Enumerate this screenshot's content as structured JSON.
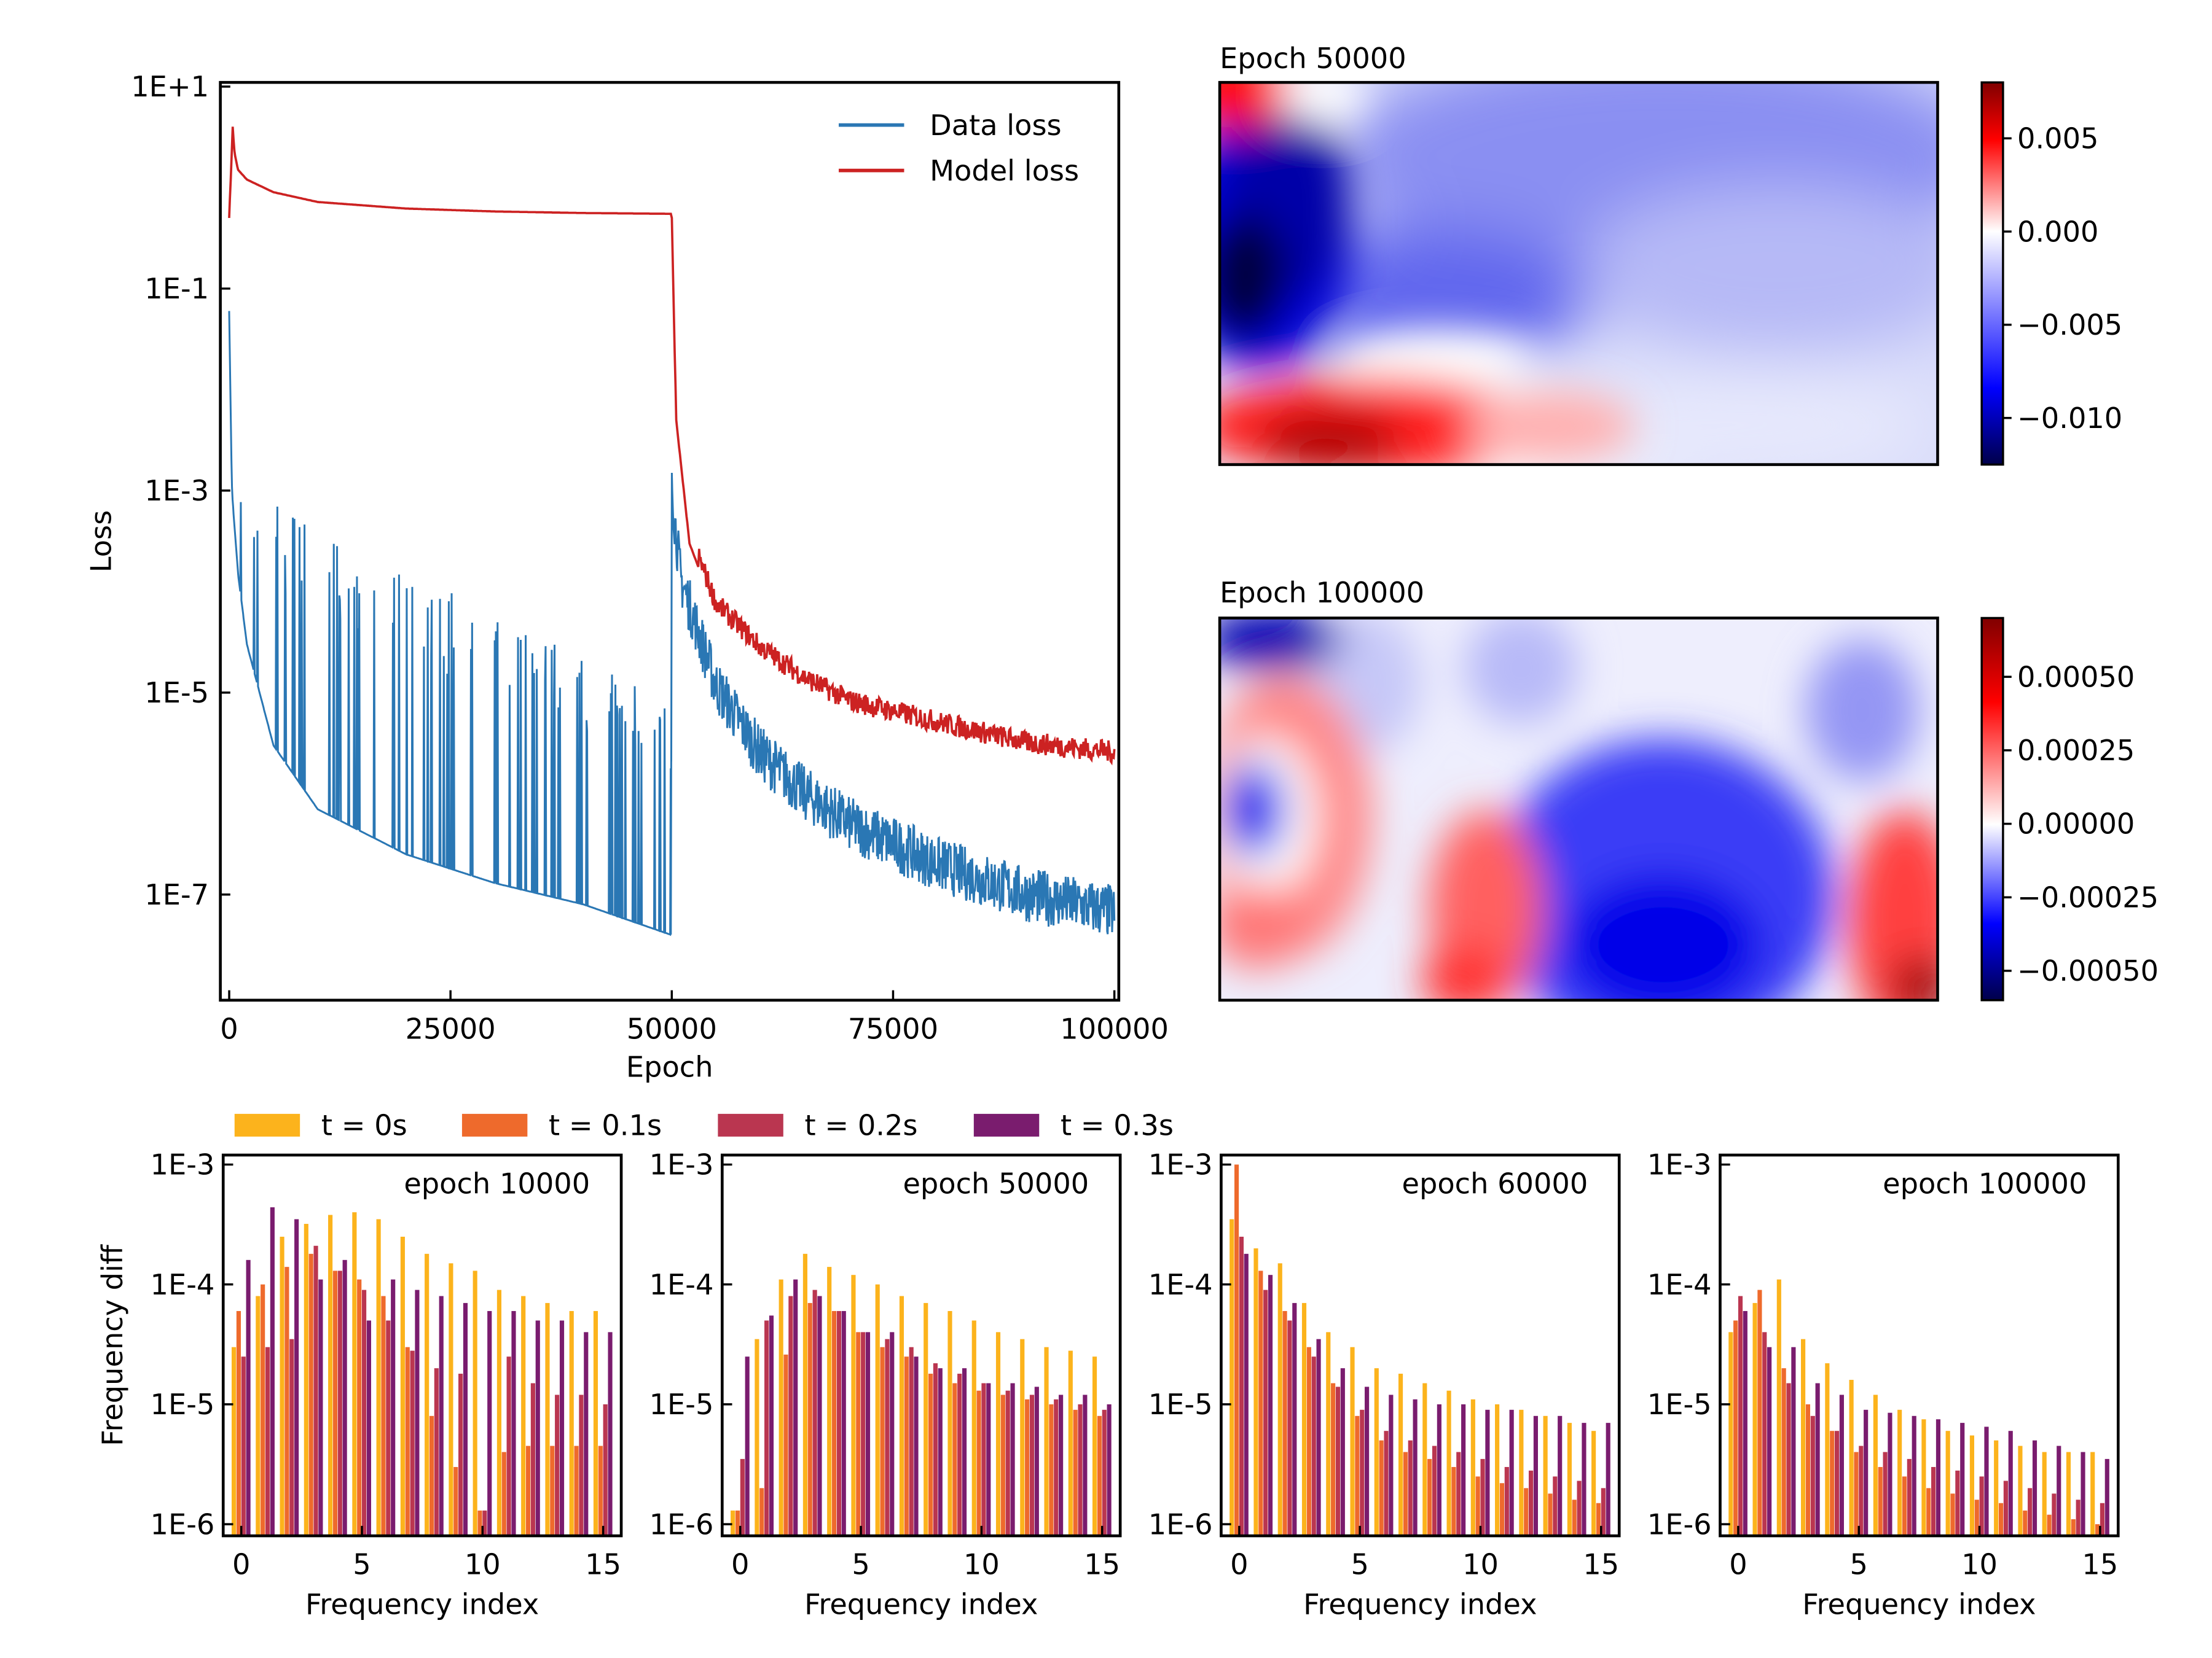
{
  "colors": {
    "data_loss": "#2a77b4",
    "model_loss": "#cc2222",
    "t0": "#fcb31c",
    "t01": "#ee6a2c",
    "t02": "#ba3650",
    "t03": "#7a1c6e"
  },
  "chart_data": [
    {
      "type": "line",
      "xlabel": "Epoch",
      "ylabel": "Loss",
      "yscale": "log",
      "xlim": [
        -1000,
        100500
      ],
      "ylim": [
        9e-09,
        11
      ],
      "xticks": [
        0,
        25000,
        50000,
        75000,
        100000
      ],
      "xtick_labels": [
        "0",
        "25000",
        "50000",
        "75000",
        "100000"
      ],
      "yticks": [
        1e-07,
        1e-05,
        0.001,
        0.1,
        10
      ],
      "ytick_labels": [
        "1E-7",
        "1E-5",
        "1E-3",
        "1E-1",
        "1E+1"
      ],
      "legend_position": "top-right",
      "series": [
        {
          "name": "Data loss",
          "x": [
            0,
            300,
            1000,
            2000,
            5000,
            10000,
            20000,
            30000,
            40000,
            49900,
            50000,
            50200,
            51000,
            55000,
            60000,
            65000,
            70000,
            80000,
            90000,
            100000
          ],
          "y": [
            0.06,
            0.001,
            0.00015,
            3e-05,
            3e-06,
            7e-07,
            2.5e-07,
            1.3e-07,
            8e-08,
            4e-08,
            0.0015,
            0.0004,
            8e-05,
            7e-06,
            1.5e-06,
            6e-07,
            3e-07,
            1.2e-07,
            6e-08,
            4e-08
          ],
          "spike_peaks_y": [
            0.0012,
            0.0009,
            0.0004,
            0.00015,
            7e-05,
            3e-05,
            1.5e-05,
            8e-06
          ]
        },
        {
          "name": "Model loss",
          "x": [
            0,
            400,
            600,
            1000,
            2000,
            5000,
            10000,
            20000,
            30000,
            40000,
            49900,
            50000,
            50500,
            52000,
            55000,
            60000,
            65000,
            70000,
            80000,
            90000,
            100000
          ],
          "y": [
            0.5,
            4,
            2.2,
            1.5,
            1.2,
            0.9,
            0.72,
            0.62,
            0.58,
            0.56,
            0.55,
            0.5,
            0.005,
            0.0003,
            6e-05,
            2.2e-05,
            1.1e-05,
            6.5e-06,
            4e-06,
            2.5e-06,
            2e-06
          ]
        }
      ]
    },
    {
      "type": "heatmap",
      "title": "Epoch 50000",
      "colormap": "seismic",
      "colorbar_range": [
        -0.0125,
        0.008
      ],
      "colorbar_ticks": [
        0.005,
        0.0,
        -0.005,
        -0.01
      ],
      "colorbar_tick_labels": [
        "0.005",
        "0.000",
        "−0.005",
        "−0.010"
      ]
    },
    {
      "type": "heatmap",
      "title": "Epoch 100000",
      "colormap": "seismic",
      "colorbar_range": [
        -0.0006,
        0.0007
      ],
      "colorbar_ticks": [
        0.0005,
        0.00025,
        0.0,
        -0.00025,
        -0.0005
      ],
      "colorbar_tick_labels": [
        "0.00050",
        "0.00025",
        "0.00000",
        "−0.00025",
        "−0.00050"
      ]
    },
    {
      "type": "bar",
      "title": "epoch 10000",
      "xlabel": "Frequency index",
      "ylabel": "Frequency diff",
      "yscale": "log",
      "ylim": [
        8e-07,
        0.0012
      ],
      "categories": [
        0,
        1,
        2,
        3,
        4,
        5,
        6,
        7,
        8,
        9,
        10,
        11,
        12,
        13,
        14,
        15
      ],
      "series": [
        {
          "name": "t = 0s",
          "values": [
            3e-05,
            8e-05,
            0.00025,
            0.00032,
            0.00038,
            0.0004,
            0.00035,
            0.00025,
            0.00018,
            0.00015,
            0.00013,
            9e-05,
            8e-05,
            7e-05,
            6e-05,
            6e-05
          ]
        },
        {
          "name": "t = 0.1s",
          "values": [
            6e-05,
            0.0001,
            0.00014,
            0.00018,
            0.00013,
            0.00011,
            8e-05,
            3e-05,
            8e-06,
            3e-06,
            1.3e-06,
            4e-06,
            4.5e-06,
            4.5e-06,
            4.5e-06,
            4.5e-06
          ]
        },
        {
          "name": "t = 0.2s",
          "values": [
            2.5e-05,
            3e-05,
            3.5e-05,
            0.00021,
            0.00013,
            9e-05,
            5e-05,
            2.8e-05,
            2e-05,
            1.8e-05,
            1.3e-06,
            2.5e-05,
            1.5e-05,
            1.2e-05,
            1.2e-05,
            1e-05
          ]
        },
        {
          "name": "t = 0.3s",
          "values": [
            0.00016,
            0.00044,
            0.00035,
            0.00011,
            0.00016,
            5e-05,
            0.00011,
            9e-05,
            8e-05,
            7e-05,
            6e-05,
            6e-05,
            5e-05,
            5e-05,
            4e-05,
            4e-05
          ]
        }
      ]
    },
    {
      "type": "bar",
      "title": "epoch 50000",
      "xlabel": "Frequency index",
      "yscale": "log",
      "ylim": [
        8e-07,
        0.0012
      ],
      "categories": [
        0,
        1,
        2,
        3,
        4,
        5,
        6,
        7,
        8,
        9,
        10,
        11,
        12,
        13,
        14,
        15
      ],
      "series": [
        {
          "name": "t = 0s",
          "values": [
            1.3e-06,
            3.5e-05,
            0.00011,
            0.00018,
            0.00014,
            0.00012,
            0.0001,
            8e-05,
            7e-05,
            6e-05,
            5e-05,
            4e-05,
            3.5e-05,
            3e-05,
            2.8e-05,
            2.5e-05
          ]
        },
        {
          "name": "t = 0.1s",
          "values": [
            1.3e-06,
            2e-06,
            2.6e-05,
            7e-05,
            6e-05,
            4e-05,
            3e-05,
            2.5e-05,
            1.8e-05,
            1.5e-05,
            1.3e-05,
            1.2e-05,
            1.1e-05,
            1e-05,
            9e-06,
            8e-06
          ]
        },
        {
          "name": "t = 0.2s",
          "values": [
            3.5e-06,
            5e-05,
            8e-05,
            9e-05,
            6e-05,
            4e-05,
            3.5e-05,
            3e-05,
            2.2e-05,
            1.8e-05,
            1.5e-05,
            1.3e-05,
            1.2e-05,
            1.1e-05,
            1e-05,
            9e-06
          ]
        },
        {
          "name": "t = 0.3s",
          "values": [
            2.5e-05,
            5.5e-05,
            0.00011,
            8e-05,
            6e-05,
            4e-05,
            4e-05,
            2.5e-05,
            2e-05,
            2e-05,
            1.5e-05,
            1.5e-05,
            1.4e-05,
            1.2e-05,
            1.2e-05,
            1e-05
          ]
        }
      ]
    },
    {
      "type": "bar",
      "title": "epoch 60000",
      "xlabel": "Frequency index",
      "yscale": "log",
      "ylim": [
        8e-07,
        0.0012
      ],
      "categories": [
        0,
        1,
        2,
        3,
        4,
        5,
        6,
        7,
        8,
        9,
        10,
        11,
        12,
        13,
        14,
        15
      ],
      "series": [
        {
          "name": "t = 0s",
          "values": [
            0.00035,
            0.0002,
            0.00015,
            7e-05,
            4e-05,
            3e-05,
            2e-05,
            1.8e-05,
            1.5e-05,
            1.3e-05,
            1.1e-05,
            1e-05,
            9e-06,
            8e-06,
            7e-06,
            6e-06
          ]
        },
        {
          "name": "t = 0.1s",
          "values": [
            0.001,
            0.00013,
            6e-05,
            3e-05,
            1.5e-05,
            8e-06,
            5e-06,
            4e-06,
            3.5e-06,
            3e-06,
            2.5e-06,
            2.2e-06,
            2e-06,
            1.8e-06,
            1.6e-06,
            1.5e-06
          ]
        },
        {
          "name": "t = 0.2s",
          "values": [
            0.00025,
            9e-05,
            5e-05,
            2.5e-05,
            1.4e-05,
            9e-06,
            6e-06,
            5e-06,
            4.5e-06,
            4e-06,
            3.5e-06,
            3e-06,
            2.8e-06,
            2.5e-06,
            2.3e-06,
            2e-06
          ]
        },
        {
          "name": "t = 0.3s",
          "values": [
            0.00018,
            0.00012,
            7e-05,
            3.5e-05,
            2e-05,
            1.4e-05,
            1.2e-05,
            1.1e-05,
            1e-05,
            1e-05,
            9e-06,
            9e-06,
            8e-06,
            8e-06,
            7e-06,
            7e-06
          ]
        }
      ]
    },
    {
      "type": "bar",
      "title": "epoch 100000",
      "xlabel": "Frequency index",
      "yscale": "log",
      "ylim": [
        8e-07,
        0.0012
      ],
      "categories": [
        0,
        1,
        2,
        3,
        4,
        5,
        6,
        7,
        8,
        9,
        10,
        11,
        12,
        13,
        14,
        15
      ],
      "series": [
        {
          "name": "t = 0s",
          "values": [
            4e-05,
            7e-05,
            0.00011,
            3.5e-05,
            2.2e-05,
            1.6e-05,
            1.2e-05,
            9e-06,
            7.5e-06,
            6e-06,
            5.5e-06,
            5e-06,
            4.5e-06,
            4e-06,
            4e-06,
            4e-06
          ]
        },
        {
          "name": "t = 0.1s",
          "values": [
            5e-05,
            9e-05,
            2e-05,
            1e-05,
            6e-06,
            4e-06,
            3e-06,
            2.5e-06,
            2e-06,
            1.8e-06,
            1.6e-06,
            1.5e-06,
            1.3e-06,
            1.2e-06,
            1.1e-06,
            1e-06
          ]
        },
        {
          "name": "t = 0.2s",
          "values": [
            8e-05,
            4e-05,
            1.5e-05,
            8e-06,
            6e-06,
            4.5e-06,
            4e-06,
            3.5e-06,
            3e-06,
            2.8e-06,
            2.5e-06,
            2.3e-06,
            2e-06,
            1.8e-06,
            1.6e-06,
            1.5e-06
          ]
        },
        {
          "name": "t = 0.3s",
          "values": [
            6e-05,
            3e-05,
            3e-05,
            1.5e-05,
            1.2e-05,
            9e-06,
            8.5e-06,
            8e-06,
            7.5e-06,
            7e-06,
            6.5e-06,
            6e-06,
            5e-06,
            4.5e-06,
            4e-06,
            3.5e-06
          ]
        }
      ]
    }
  ],
  "bar_legend": [
    "t = 0s",
    "t = 0.1s",
    "t = 0.2s",
    "t = 0.3s"
  ]
}
